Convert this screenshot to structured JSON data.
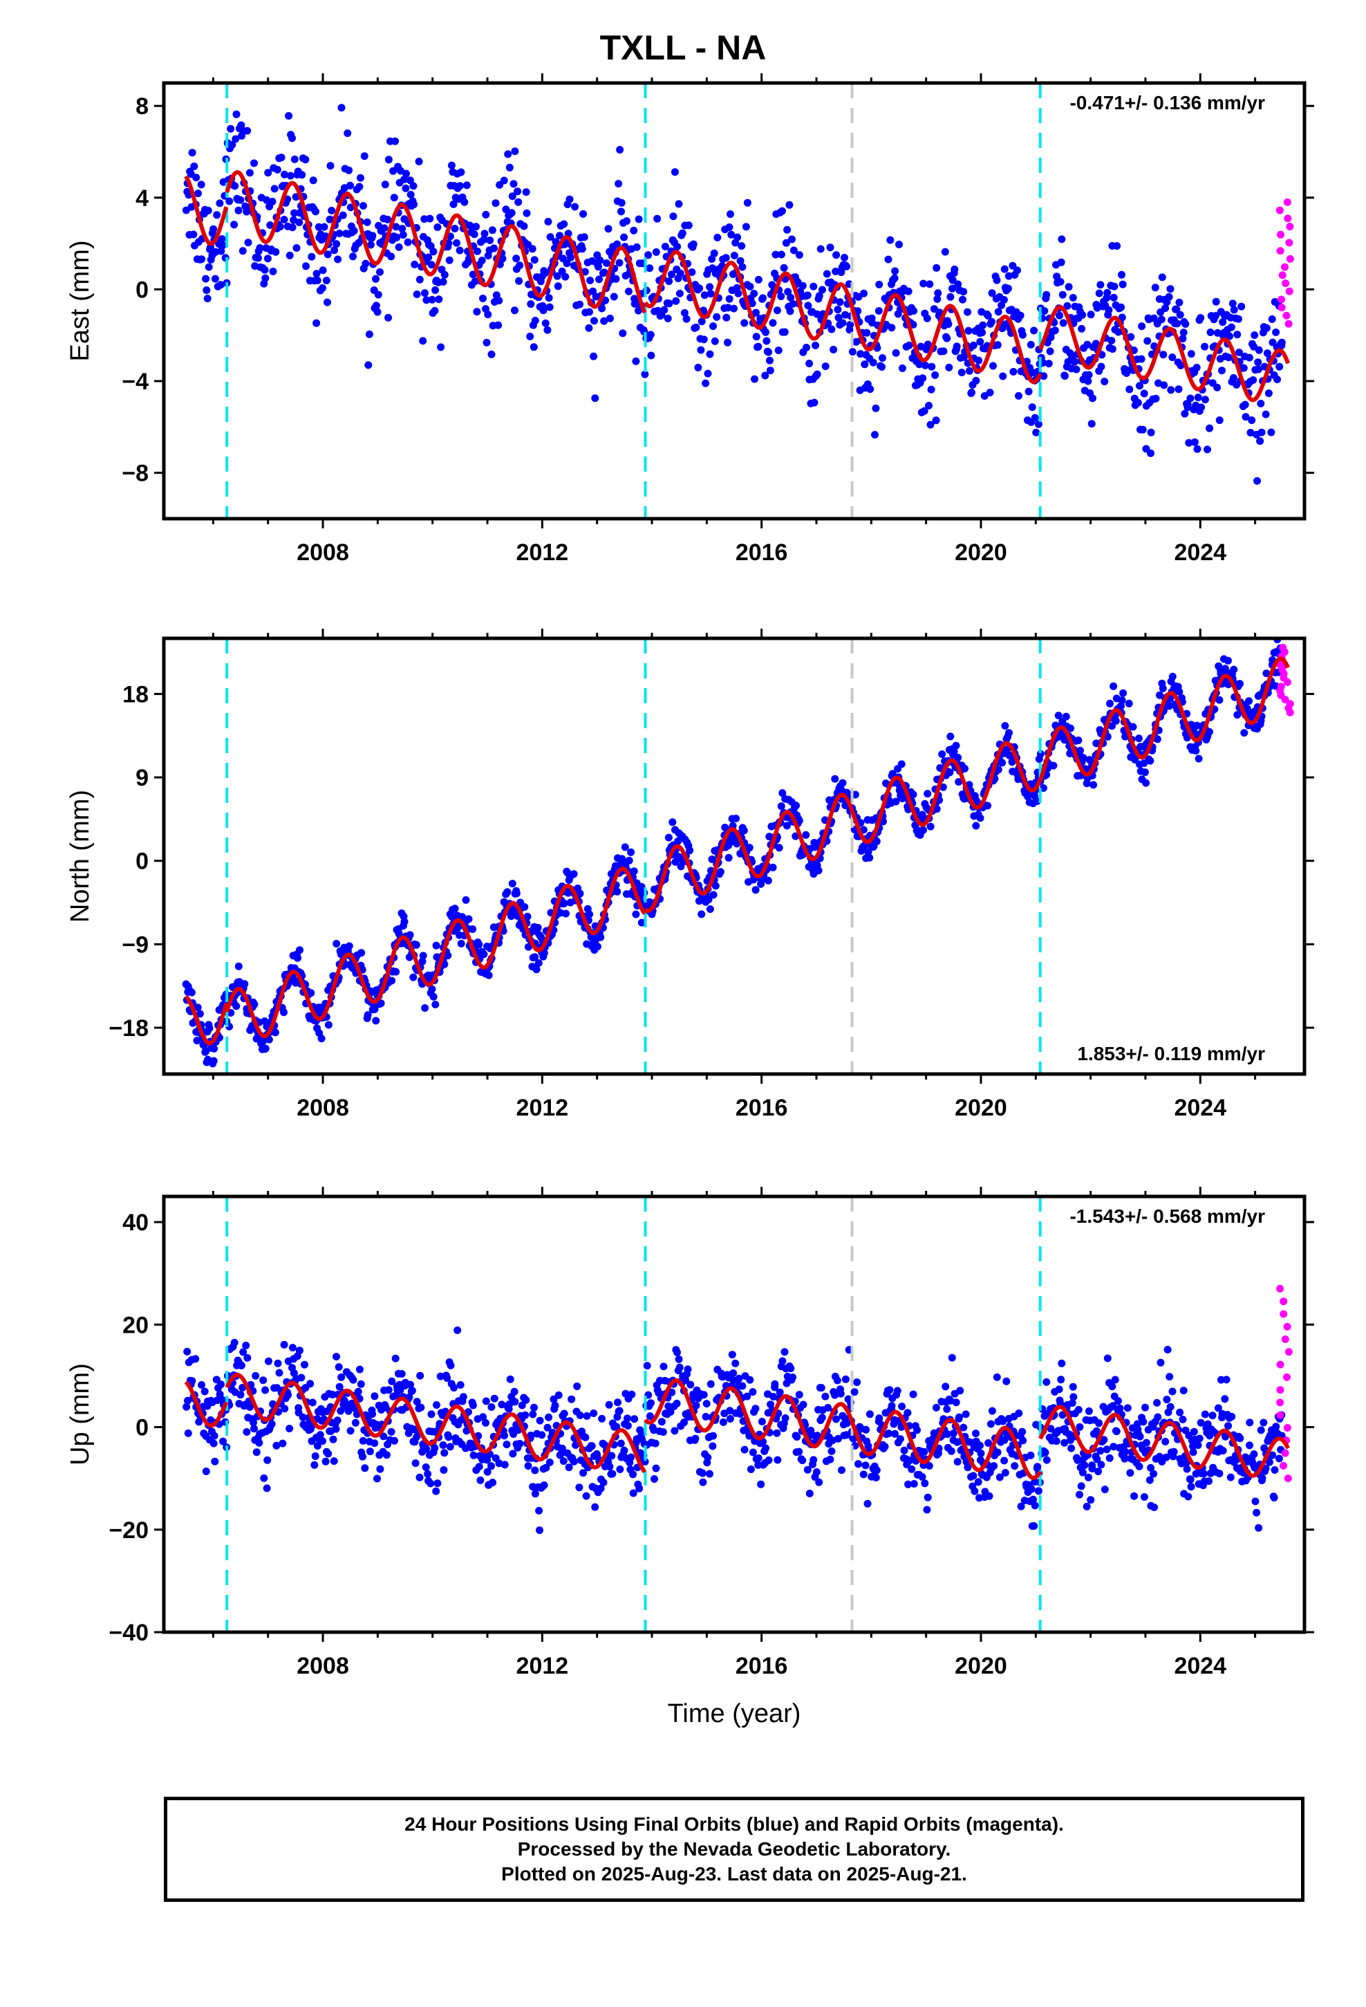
{
  "title": "TXLL - NA",
  "footer": {
    "line1": "24 Hour Positions Using Final Orbits (blue) and Rapid Orbits (magenta).",
    "line2": "Processed by the Nevada Geodetic Laboratory.",
    "line3": "Plotted on 2025-Aug-23. Last data on 2025-Aug-21."
  },
  "colors": {
    "final_orbits": "#0000ff",
    "rapid_orbits": "#ff00ff",
    "model_fit": "#e00000",
    "antenna_change_lines": "#00e5ee",
    "equipment_change_lines": "#c8c8c8"
  },
  "chart_data": [
    {
      "type": "scatter",
      "component": "east",
      "ylabel": "East (mm)",
      "rate_text": "-0.471+/- 0.136 mm/yr",
      "rate_position": "top-right",
      "xlim": [
        2005.1,
        2025.9
      ],
      "ylim": [
        -10,
        9
      ],
      "xticks": [
        2008,
        2012,
        2016,
        2020,
        2024
      ],
      "yticks": [
        -8,
        -4,
        0,
        4,
        8
      ],
      "xtick_labels": [
        "2008",
        "2012",
        "2016",
        "2020",
        "2024"
      ],
      "ytick_labels": [
        "−8",
        "−4",
        "0",
        "4",
        "8"
      ],
      "vertical_lines": [
        {
          "x": 2006.25,
          "color": "cyan"
        },
        {
          "x": 2013.88,
          "color": "cyan"
        },
        {
          "x": 2017.65,
          "color": "gray"
        },
        {
          "x": 2021.08,
          "color": "cyan"
        }
      ],
      "series": [
        {
          "name": "Final Orbits",
          "color": "blue",
          "x_range": [
            2005.5,
            2025.5
          ],
          "spread": 1.4
        },
        {
          "name": "Rapid Orbits",
          "color": "magenta",
          "x_range": [
            2025.45,
            2025.65
          ],
          "y_range": [
            -1.5,
            3.8
          ]
        },
        {
          "name": "Model fit",
          "color": "red",
          "segments": [
            {
              "from": 2005.5,
              "to": 2006.25,
              "offset": 3.6,
              "rate": -0.471,
              "amplitude": 1.4
            },
            {
              "from": 2006.25,
              "to": 2013.88,
              "offset": 3.8,
              "rate": -0.471,
              "amplitude": 1.4
            },
            {
              "from": 2013.88,
              "to": 2021.08,
              "offset": 0.6,
              "rate": -0.471,
              "amplitude": 1.3
            },
            {
              "from": 2021.08,
              "to": 2025.6,
              "offset": -1.8,
              "rate": -0.471,
              "amplitude": 1.2
            }
          ]
        }
      ]
    },
    {
      "type": "scatter",
      "component": "north",
      "ylabel": "North (mm)",
      "rate_text": "1.853+/- 0.119 mm/yr",
      "rate_position": "bottom-right",
      "xlim": [
        2005.1,
        2025.9
      ],
      "ylim": [
        -23,
        24
      ],
      "xticks": [
        2008,
        2012,
        2016,
        2020,
        2024
      ],
      "yticks": [
        -18,
        -9,
        0,
        9,
        18
      ],
      "xtick_labels": [
        "2008",
        "2012",
        "2016",
        "2020",
        "2024"
      ],
      "ytick_labels": [
        "−18",
        "−9",
        "0",
        "9",
        "18"
      ],
      "vertical_lines": [
        {
          "x": 2006.25,
          "color": "cyan"
        },
        {
          "x": 2013.88,
          "color": "cyan"
        },
        {
          "x": 2017.65,
          "color": "gray"
        },
        {
          "x": 2021.08,
          "color": "cyan"
        }
      ],
      "series": [
        {
          "name": "Final Orbits",
          "color": "blue",
          "x_range": [
            2005.5,
            2025.5
          ],
          "spread": 1.1
        },
        {
          "name": "Rapid Orbits",
          "color": "magenta",
          "x_range": [
            2025.45,
            2025.65
          ],
          "y_range": [
            16,
            23
          ]
        },
        {
          "name": "Model fit",
          "color": "red",
          "segments": [
            {
              "from": 2005.5,
              "to": 2006.25,
              "offset": -17.5,
              "rate": 1.853,
              "amplitude": 3.0
            },
            {
              "from": 2006.25,
              "to": 2013.88,
              "offset": -17.2,
              "rate": 1.853,
              "amplitude": 3.0
            },
            {
              "from": 2013.88,
              "to": 2021.08,
              "offset": -2.5,
              "rate": 1.853,
              "amplitude": 3.0
            },
            {
              "from": 2021.08,
              "to": 2025.6,
              "offset": 10.7,
              "rate": 1.853,
              "amplitude": 3.0
            }
          ]
        }
      ]
    },
    {
      "type": "scatter",
      "component": "up",
      "ylabel": "Up (mm)",
      "rate_text": "-1.543+/- 0.568 mm/yr",
      "rate_position": "top-right",
      "xlim": [
        2005.1,
        2025.9
      ],
      "ylim": [
        -40,
        45
      ],
      "xticks": [
        2008,
        2012,
        2016,
        2020,
        2024
      ],
      "yticks": [
        -40,
        -20,
        0,
        20,
        40
      ],
      "xtick_labels": [
        "2008",
        "2012",
        "2016",
        "2020",
        "2024"
      ],
      "ytick_labels": [
        "−40",
        "−20",
        "0",
        "20",
        "40"
      ],
      "xlabel": "Time (year)",
      "vertical_lines": [
        {
          "x": 2006.25,
          "color": "cyan"
        },
        {
          "x": 2013.88,
          "color": "cyan"
        },
        {
          "x": 2017.65,
          "color": "gray"
        },
        {
          "x": 2021.08,
          "color": "cyan"
        }
      ],
      "series": [
        {
          "name": "Final Orbits",
          "color": "blue",
          "x_range": [
            2005.5,
            2025.5
          ],
          "spread": 4.5
        },
        {
          "name": "Rapid Orbits",
          "color": "magenta",
          "x_range": [
            2025.45,
            2025.65
          ],
          "y_range": [
            -10,
            27
          ]
        },
        {
          "name": "Model fit",
          "color": "red",
          "segments": [
            {
              "from": 2005.5,
              "to": 2006.25,
              "offset": 5.0,
              "rate": -1.543,
              "amplitude": 4.0
            },
            {
              "from": 2006.25,
              "to": 2013.88,
              "offset": 6.5,
              "rate": -1.543,
              "amplitude": 4.0
            },
            {
              "from": 2013.88,
              "to": 2021.08,
              "offset": 5.5,
              "rate": -1.543,
              "amplitude": 4.5
            },
            {
              "from": 2021.08,
              "to": 2025.6,
              "offset": 0.5,
              "rate": -1.543,
              "amplitude": 4.0
            }
          ]
        }
      ]
    }
  ]
}
